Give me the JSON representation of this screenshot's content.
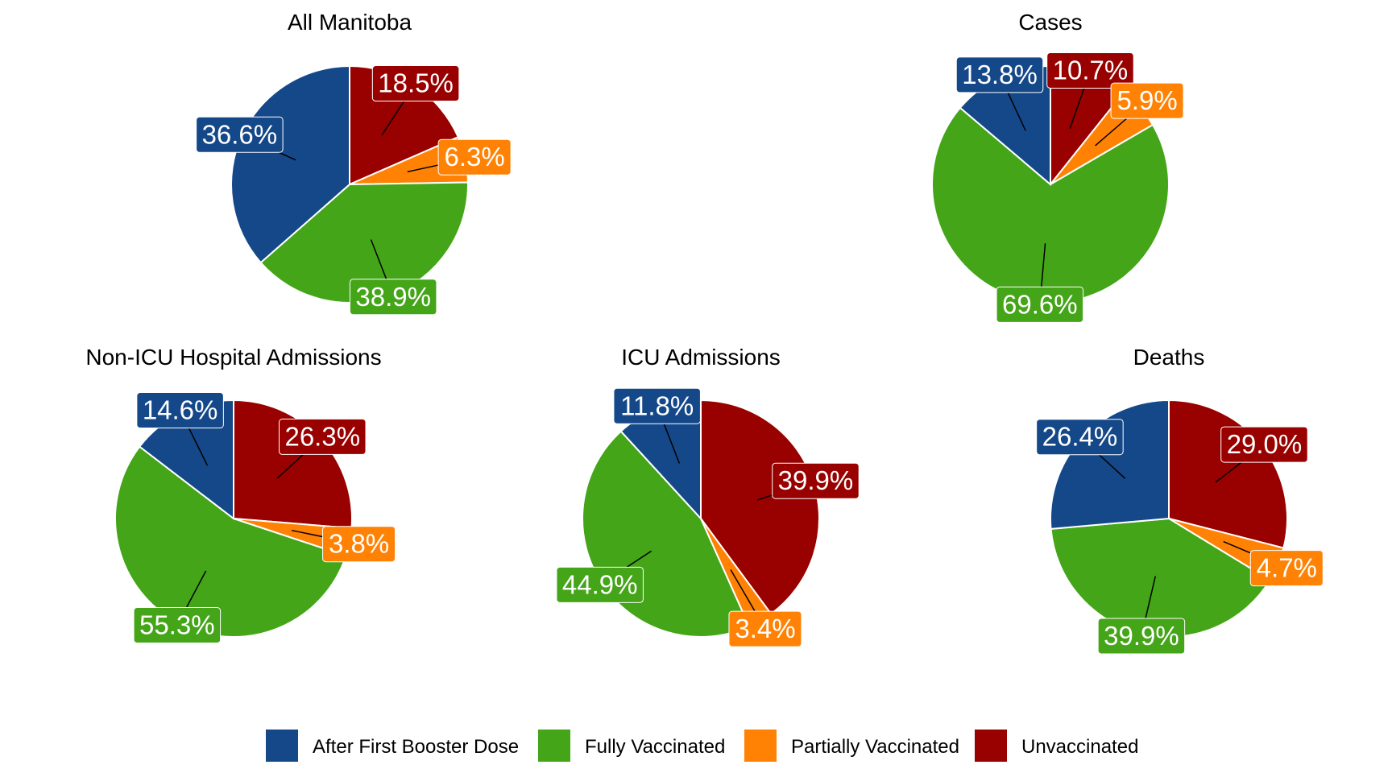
{
  "colors": {
    "After First Booster Dose": "#154889",
    "Fully Vaccinated": "#44a519",
    "Partially Vaccinated": "#ff8205",
    "Unvaccinated": "#990000"
  },
  "chart_data": [
    {
      "type": "pie",
      "title": "All Manitoba",
      "slices": [
        {
          "label": "Unvaccinated",
          "value": 18.5,
          "text": "18.5%"
        },
        {
          "label": "Partially Vaccinated",
          "value": 6.3,
          "text": "6.3%"
        },
        {
          "label": "Fully Vaccinated",
          "value": 38.9,
          "text": "38.9%"
        },
        {
          "label": "After First Booster Dose",
          "value": 36.6,
          "text": "36.6%"
        }
      ]
    },
    {
      "type": "pie",
      "title": "Cases",
      "slices": [
        {
          "label": "Unvaccinated",
          "value": 10.7,
          "text": "10.7%"
        },
        {
          "label": "Partially Vaccinated",
          "value": 5.9,
          "text": "5.9%"
        },
        {
          "label": "Fully Vaccinated",
          "value": 69.6,
          "text": "69.6%"
        },
        {
          "label": "After First Booster Dose",
          "value": 13.8,
          "text": "13.8%"
        }
      ]
    },
    {
      "type": "pie",
      "title": "Non-ICU Hospital Admissions",
      "slices": [
        {
          "label": "Unvaccinated",
          "value": 26.3,
          "text": "26.3%"
        },
        {
          "label": "Partially Vaccinated",
          "value": 3.8,
          "text": "3.8%"
        },
        {
          "label": "Fully Vaccinated",
          "value": 55.3,
          "text": "55.3%"
        },
        {
          "label": "After First Booster Dose",
          "value": 14.6,
          "text": "14.6%"
        }
      ]
    },
    {
      "type": "pie",
      "title": "ICU Admissions",
      "slices": [
        {
          "label": "Unvaccinated",
          "value": 39.9,
          "text": "39.9%"
        },
        {
          "label": "Partially Vaccinated",
          "value": 3.4,
          "text": "3.4%"
        },
        {
          "label": "Fully Vaccinated",
          "value": 44.9,
          "text": "44.9%"
        },
        {
          "label": "After First Booster Dose",
          "value": 11.8,
          "text": "11.8%"
        }
      ]
    },
    {
      "type": "pie",
      "title": "Deaths",
      "slices": [
        {
          "label": "Unvaccinated",
          "value": 29.0,
          "text": "29.0%"
        },
        {
          "label": "Partially Vaccinated",
          "value": 4.7,
          "text": "4.7%"
        },
        {
          "label": "Fully Vaccinated",
          "value": 39.9,
          "text": "39.9%"
        },
        {
          "label": "After First Booster Dose",
          "value": 26.4,
          "text": "26.4%"
        }
      ]
    }
  ],
  "legend": {
    "position": "bottom",
    "items": [
      "After First Booster Dose",
      "Fully Vaccinated",
      "Partially Vaccinated",
      "Unvaccinated"
    ]
  }
}
